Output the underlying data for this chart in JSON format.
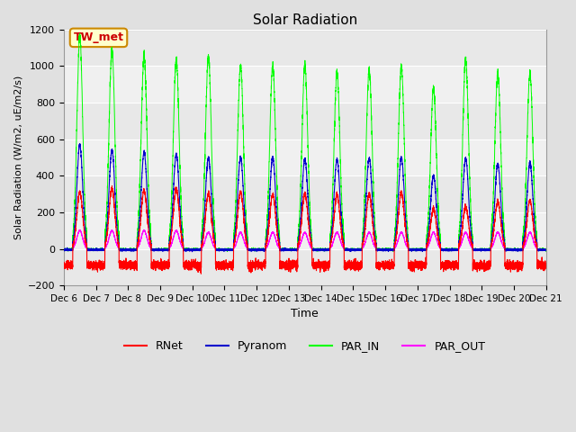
{
  "title": "Solar Radiation",
  "ylabel": "Solar Radiation (W/m2, uE/m2/s)",
  "xlabel": "Time",
  "ylim": [
    -200,
    1200
  ],
  "yticks": [
    -200,
    0,
    200,
    400,
    600,
    800,
    1000,
    1200
  ],
  "x_tick_labels": [
    "Dec 6",
    "Dec 7",
    "Dec 8",
    "Dec 9",
    "Dec 10",
    "Dec 11",
    "Dec 12",
    "Dec 13",
    "Dec 14",
    "Dec 15",
    "Dec 16",
    "Dec 17",
    "Dec 18",
    "Dec 19",
    "Dec 20",
    "Dec 21"
  ],
  "fig_bg_color": "#e0e0e0",
  "plot_bg_color": "#f0f0f0",
  "grid_color": "#ffffff",
  "colors": {
    "RNet": "#ff0000",
    "Pyranom": "#0000cc",
    "PAR_IN": "#00ff00",
    "PAR_OUT": "#ff00ff"
  },
  "annotation_text": "TW_met",
  "annotation_bbox_face": "#ffffcc",
  "annotation_bbox_edge": "#cc8800",
  "n_days": 15,
  "rnet_peaks": [
    310,
    330,
    320,
    330,
    300,
    310,
    300,
    305,
    295,
    300,
    310,
    220,
    230,
    260,
    265
  ],
  "pyra_peaks": [
    570,
    540,
    530,
    520,
    500,
    500,
    500,
    490,
    490,
    495,
    500,
    400,
    495,
    465,
    470
  ],
  "par_in_peaks": [
    1160,
    1090,
    1055,
    1035,
    1050,
    1000,
    1000,
    1005,
    960,
    975,
    1000,
    880,
    1035,
    960,
    960
  ],
  "par_out_peaks": [
    100,
    100,
    100,
    100,
    90,
    90,
    90,
    90,
    90,
    90,
    90,
    90,
    90,
    90,
    90
  ],
  "rnet_night_base": -90,
  "day_start": 0.28,
  "day_end": 0.72
}
